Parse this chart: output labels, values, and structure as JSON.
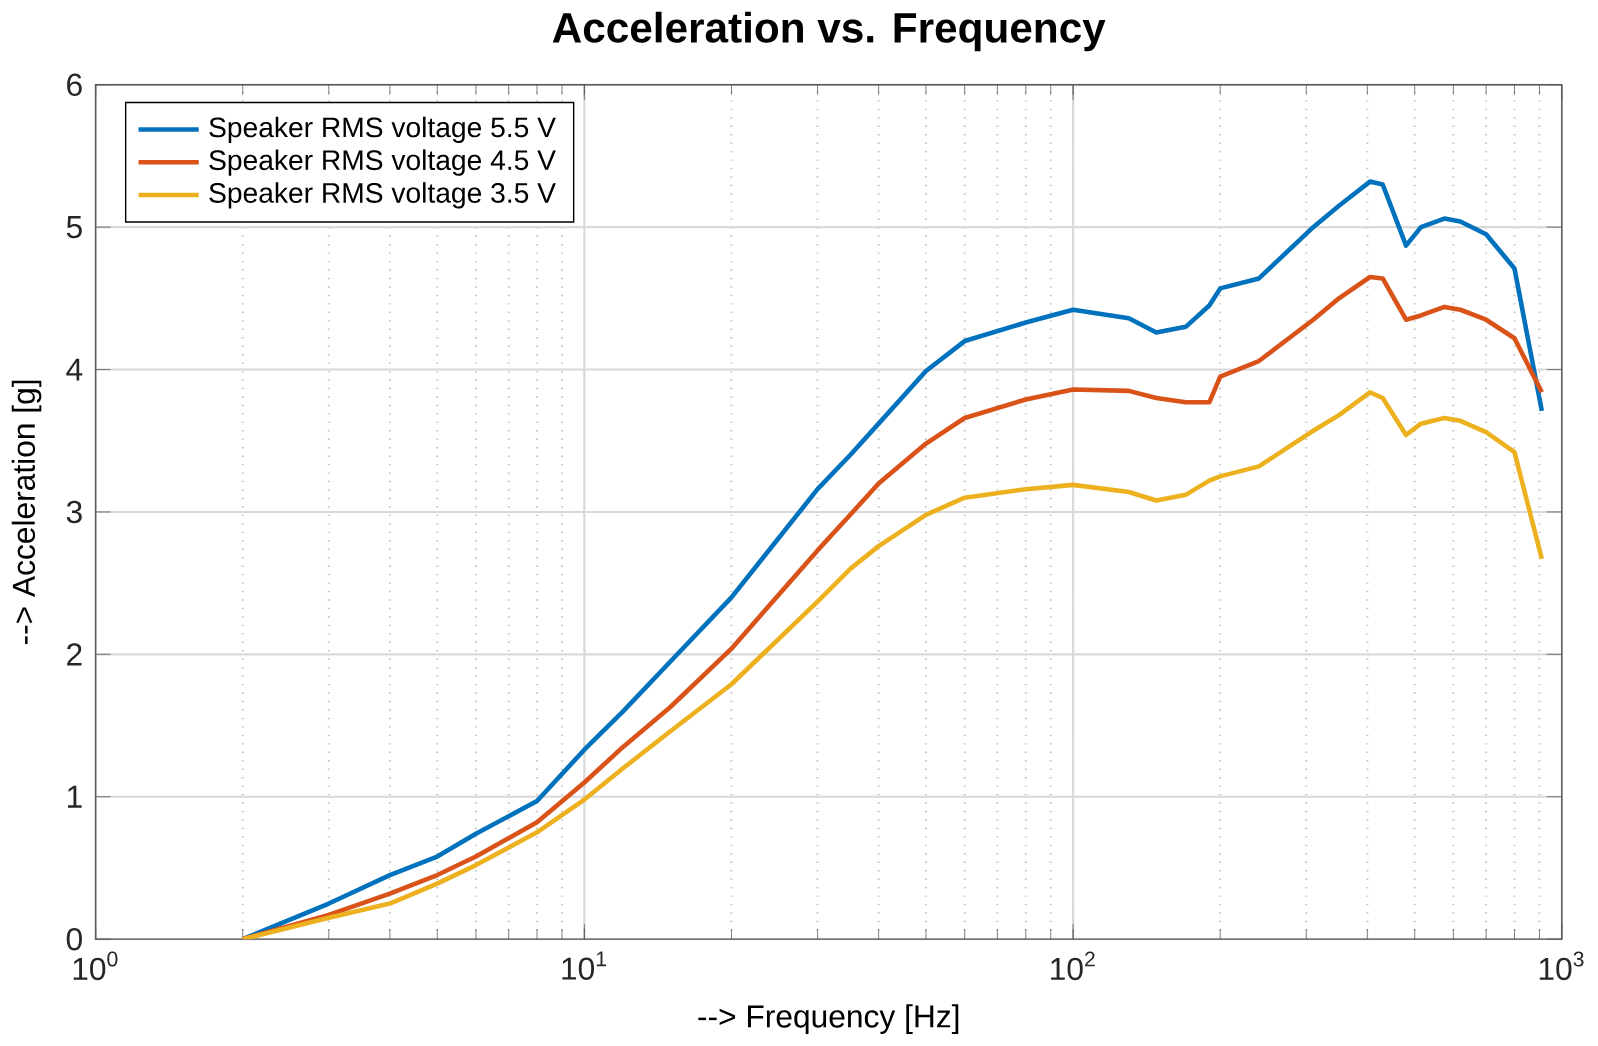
{
  "chart_data": {
    "type": "line",
    "title": "Acceleration vs. Frequency",
    "xlabel": "--> Frequency [Hz]",
    "ylabel": "--> Acceleration [g]",
    "log": "x",
    "grid": true,
    "legend": "top left",
    "line_style": "solid",
    "marker": "none",
    "xlim": [
      1,
      1000
    ],
    "ylim": [
      0,
      6
    ],
    "xticks": [
      {
        "value": 1,
        "label": "10$^{0}$"
      },
      {
        "value": 10,
        "label": "10$^{1}$"
      },
      {
        "value": 100,
        "label": "10$^{2}$"
      },
      {
        "value": 1000,
        "label": "10$^{3}$"
      }
    ],
    "yticks": [
      0,
      1,
      2,
      3,
      4,
      5,
      6
    ],
    "x": [
      2,
      3,
      4,
      5,
      6,
      8,
      10,
      12,
      15,
      20,
      30,
      35,
      40,
      50,
      60,
      80,
      100,
      130,
      148,
      170,
      190,
      200,
      240,
      310,
      350,
      405,
      430,
      480,
      515,
      575,
      620,
      700,
      800,
      910
    ],
    "series": [
      {
        "name": "Speaker RMS voltage 5.5 V",
        "color": "#0072bd",
        "values": [
          0,
          0.25,
          0.45,
          0.58,
          0.74,
          0.97,
          1.33,
          1.6,
          1.95,
          2.4,
          3.16,
          3.4,
          3.62,
          3.99,
          4.2,
          4.33,
          4.42,
          4.36,
          4.26,
          4.3,
          4.45,
          4.57,
          4.64,
          5.0,
          5.15,
          5.32,
          5.3,
          4.87,
          5.0,
          5.06,
          5.04,
          4.95,
          4.71,
          3.71
        ]
      },
      {
        "name": "Speaker RMS voltage 4.5 V",
        "color": "#d95319",
        "values": [
          0,
          0.17,
          0.32,
          0.45,
          0.58,
          0.82,
          1.1,
          1.35,
          1.63,
          2.04,
          2.73,
          2.98,
          3.2,
          3.48,
          3.66,
          3.79,
          3.86,
          3.85,
          3.8,
          3.77,
          3.77,
          3.95,
          4.06,
          4.35,
          4.5,
          4.65,
          4.64,
          4.35,
          4.38,
          4.44,
          4.42,
          4.35,
          4.22,
          3.84
        ]
      },
      {
        "name": "Speaker RMS voltage 3.5 V",
        "color": "#edb120",
        "values": [
          0,
          0.15,
          0.25,
          0.39,
          0.52,
          0.75,
          0.98,
          1.2,
          1.46,
          1.79,
          2.37,
          2.6,
          2.76,
          2.98,
          3.1,
          3.16,
          3.19,
          3.14,
          3.08,
          3.12,
          3.22,
          3.25,
          3.32,
          3.57,
          3.68,
          3.84,
          3.8,
          3.54,
          3.62,
          3.66,
          3.64,
          3.56,
          3.42,
          2.67
        ]
      }
    ]
  }
}
